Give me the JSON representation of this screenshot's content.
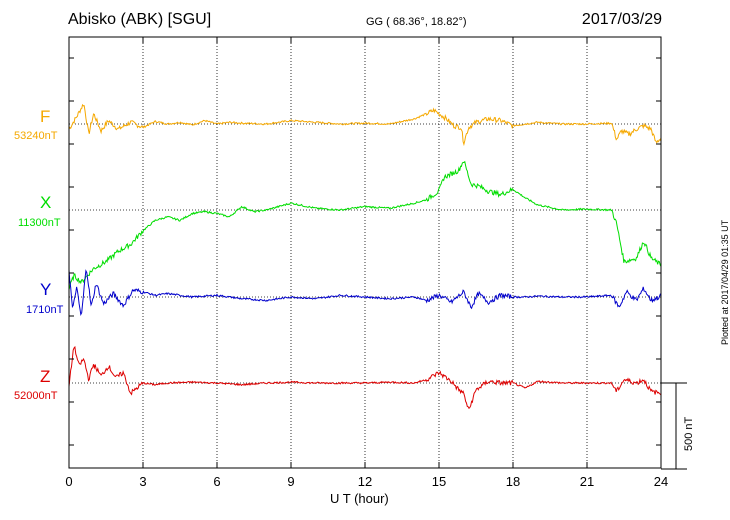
{
  "header": {
    "station": "Abisko (ABK)  [SGU]",
    "coords": "GG ( 68.36°,  18.82°)",
    "date": "2017/03/29"
  },
  "footer": {
    "xlabel": "U T (hour)",
    "plotted": "Plotted at 2017/04/29 01:35 UT"
  },
  "scale_bar": {
    "label": "500 nT"
  },
  "colors": {
    "F": "#f5a800",
    "X": "#00dd00",
    "Y": "#0000cc",
    "Z": "#dd0000",
    "grid": "#000000"
  },
  "components": [
    {
      "id": "F",
      "name": "F",
      "baseline": "53240nT",
      "color": "#f5a800"
    },
    {
      "id": "X",
      "name": "X",
      "baseline": "11300nT",
      "color": "#00dd00"
    },
    {
      "id": "Y",
      "name": "Y",
      "baseline": "1710nT",
      "color": "#0000cc"
    },
    {
      "id": "Z",
      "name": "Z",
      "baseline": "52000nT",
      "color": "#dd0000"
    }
  ],
  "chart_data": {
    "type": "line",
    "title": "Abisko (ABK)  [SGU]",
    "xlabel": "U T (hour)",
    "xlim": [
      0,
      24
    ],
    "xticks": [
      "0",
      "3",
      "6",
      "9",
      "12",
      "15",
      "18",
      "21",
      "24"
    ],
    "units": "nT",
    "grid": true,
    "series": [
      {
        "name": "F",
        "baseline_nT": 53240,
        "x": [
          0,
          0.3,
          0.6,
          0.8,
          1.0,
          1.3,
          1.6,
          2.0,
          2.5,
          3.0,
          3.5,
          4.0,
          4.5,
          5.0,
          5.5,
          6.0,
          6.5,
          7.0,
          8.0,
          9.0,
          10.0,
          11.0,
          12.0,
          13.0,
          14.0,
          14.5,
          14.8,
          15.0,
          15.3,
          15.6,
          15.9,
          16.0,
          16.2,
          16.5,
          17.0,
          17.5,
          18.0,
          18.5,
          19.0,
          20.0,
          21.0,
          22.0,
          22.2,
          22.4,
          22.7,
          23.0,
          23.3,
          23.6,
          23.8,
          24.0
        ],
        "y": [
          -30,
          40,
          120,
          -60,
          60,
          -40,
          20,
          -30,
          10,
          -20,
          15,
          0,
          10,
          -5,
          20,
          0,
          10,
          5,
          0,
          20,
          10,
          0,
          5,
          0,
          30,
          60,
          80,
          60,
          30,
          -10,
          -20,
          -110,
          -20,
          10,
          30,
          20,
          -10,
          0,
          10,
          0,
          0,
          5,
          -90,
          -40,
          -60,
          -30,
          -10,
          -30,
          -110,
          -80
        ]
      },
      {
        "name": "X",
        "baseline_nT": 11300,
        "x": [
          0,
          0.2,
          0.5,
          1.0,
          1.5,
          2.0,
          2.5,
          3.0,
          3.5,
          4.0,
          4.5,
          5.0,
          5.5,
          6.0,
          6.5,
          7.0,
          7.5,
          8.0,
          9.0,
          10.0,
          11.0,
          12.0,
          13.0,
          14.0,
          14.5,
          15.0,
          15.2,
          15.5,
          15.8,
          16.0,
          16.3,
          16.6,
          17.0,
          17.5,
          18.0,
          18.5,
          19.0,
          20.0,
          21.0,
          22.0,
          22.2,
          22.5,
          23.0,
          23.3,
          23.6,
          24.0
        ],
        "y": [
          -460,
          -380,
          -420,
          -340,
          -300,
          -240,
          -200,
          -120,
          -60,
          -40,
          -60,
          -20,
          -10,
          -20,
          -40,
          20,
          -10,
          0,
          40,
          10,
          0,
          20,
          10,
          40,
          60,
          110,
          190,
          210,
          230,
          290,
          150,
          140,
          110,
          90,
          120,
          70,
          30,
          0,
          5,
          0,
          -80,
          -300,
          -280,
          -180,
          -280,
          -320
        ]
      },
      {
        "name": "Y",
        "baseline_nT": 1710,
        "x": [
          0,
          0.15,
          0.3,
          0.5,
          0.7,
          0.9,
          1.1,
          1.4,
          1.8,
          2.2,
          2.6,
          3.0,
          3.5,
          4.0,
          5.0,
          6.0,
          7.0,
          8.0,
          9.0,
          10.0,
          11.0,
          12.0,
          13.0,
          14.0,
          14.5,
          15.0,
          15.5,
          16.0,
          16.3,
          16.6,
          17.0,
          17.5,
          18.0,
          18.5,
          19.0,
          20.0,
          21.0,
          22.0,
          22.3,
          22.6,
          23.0,
          23.3,
          23.6,
          24.0
        ],
        "y": [
          160,
          -80,
          60,
          -120,
          180,
          -60,
          80,
          -40,
          20,
          -50,
          40,
          30,
          10,
          20,
          0,
          10,
          -10,
          -20,
          0,
          -10,
          10,
          0,
          -10,
          0,
          -20,
          10,
          -30,
          30,
          -60,
          20,
          -30,
          10,
          0,
          0,
          5,
          0,
          0,
          10,
          -60,
          30,
          -20,
          50,
          -20,
          5
        ]
      },
      {
        "name": "Z",
        "baseline_nT": 52000,
        "x": [
          0,
          0.2,
          0.4,
          0.6,
          0.8,
          1.0,
          1.3,
          1.6,
          1.9,
          2.2,
          2.5,
          3.0,
          3.5,
          4.0,
          5.0,
          6.0,
          7.0,
          8.0,
          9.0,
          10.0,
          11.0,
          12.0,
          13.0,
          14.0,
          14.5,
          15.0,
          15.5,
          15.8,
          16.0,
          16.2,
          16.5,
          17.0,
          17.5,
          18.0,
          18.5,
          19.0,
          20.0,
          21.0,
          22.0,
          22.2,
          22.5,
          23.0,
          23.3,
          23.6,
          24.0
        ],
        "y": [
          -20,
          220,
          100,
          140,
          20,
          110,
          40,
          100,
          30,
          60,
          -60,
          0,
          -10,
          0,
          5,
          0,
          -10,
          0,
          5,
          0,
          0,
          0,
          5,
          0,
          20,
          60,
          10,
          -40,
          -60,
          -160,
          -40,
          10,
          0,
          0,
          -30,
          10,
          0,
          0,
          0,
          -50,
          20,
          0,
          20,
          -50,
          -60
        ]
      }
    ]
  }
}
